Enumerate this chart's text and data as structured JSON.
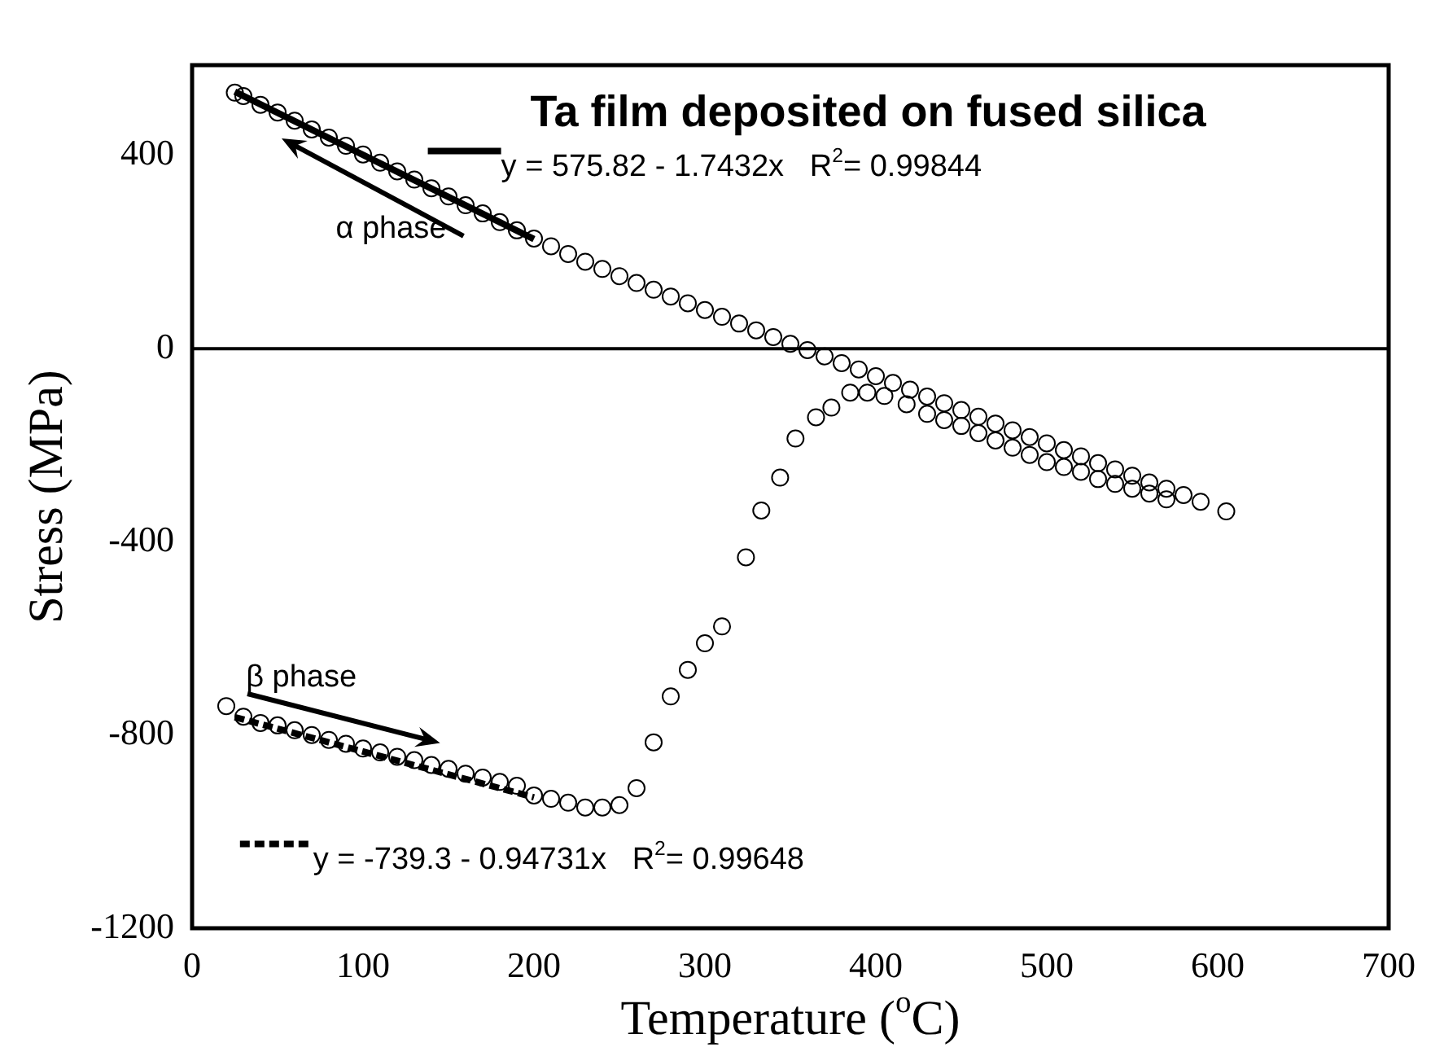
{
  "chart_data": {
    "type": "scatter",
    "title": "Ta film deposited on fused silica",
    "xlabel": "Temperature ($^{o}$C)",
    "ylabel": "Stress (MPa)",
    "xlim": [
      0,
      700
    ],
    "xticks": [
      0,
      100,
      200,
      300,
      400,
      500,
      600,
      700
    ],
    "ylim": [
      -1200,
      587
    ],
    "yticks": [
      -1200,
      -800,
      -400,
      0,
      400
    ],
    "grid": false,
    "legend": "left",
    "ref_lines": [
      {
        "axis": "y",
        "value": 0,
        "color": "#000000",
        "line_style": "solid"
      }
    ],
    "annotations": [
      "α phase",
      "β phase"
    ],
    "series": [
      {
        "type": "scatter",
        "marker": "circle",
        "color": "#000000",
        "x": [
          25,
          30,
          40,
          50,
          60,
          70,
          80,
          90,
          100,
          110,
          120,
          130,
          140,
          150,
          160,
          170,
          180,
          190,
          200,
          210,
          220,
          230,
          240,
          250,
          260,
          270,
          280,
          290,
          300,
          310,
          320,
          330,
          340,
          350,
          360,
          370,
          380,
          390,
          400,
          410,
          420,
          430,
          440,
          450,
          460,
          470,
          480,
          490,
          500,
          510,
          520,
          530,
          540,
          550,
          560,
          570,
          580,
          590,
          605
        ],
        "values": [
          530,
          523,
          505,
          489,
          472,
          454,
          437,
          420,
          402,
          385,
          367,
          350,
          332,
          315,
          297,
          280,
          262,
          245,
          228,
          212,
          196,
          180,
          165,
          150,
          136,
          122,
          108,
          94,
          80,
          66,
          52,
          38,
          24,
          10,
          -3,
          -16,
          -30,
          -43,
          -57,
          -71,
          -85,
          -99,
          -113,
          -127,
          -141,
          -155,
          -169,
          -183,
          -196,
          -210,
          -223,
          -237,
          -250,
          -263,
          -277,
          -290,
          -303,
          -317,
          -337
        ]
      },
      {
        "type": "scatter",
        "marker": "circle",
        "color": "#000000",
        "x": [
          20,
          30,
          40,
          50,
          60,
          70,
          80,
          90,
          100,
          110,
          120,
          130,
          140,
          150,
          160,
          170,
          180,
          190,
          200,
          210,
          220,
          230,
          240,
          250,
          260,
          270,
          280,
          290,
          300,
          310,
          324,
          333,
          344,
          353,
          365,
          374,
          385,
          395,
          405,
          418,
          430,
          440,
          450,
          460,
          470,
          480,
          490,
          500,
          510,
          520,
          530,
          540,
          550,
          560,
          570
        ],
        "values": [
          -740,
          -762,
          -775,
          -780,
          -790,
          -800,
          -810,
          -818,
          -828,
          -836,
          -845,
          -852,
          -862,
          -870,
          -880,
          -888,
          -897,
          -905,
          -925,
          -932,
          -940,
          -950,
          -950,
          -945,
          -910,
          -815,
          -720,
          -665,
          -610,
          -575,
          -432,
          -335,
          -267,
          -186,
          -142,
          -122,
          -91,
          -91,
          -98,
          -115,
          -135,
          -148,
          -160,
          -175,
          -190,
          -205,
          -220,
          -235,
          -245,
          -255,
          -270,
          -280,
          -290,
          -300,
          -312
        ]
      },
      {
        "type": "line",
        "name": "y = 575.82 - 1.7432x   R$^{2}$= 0.99844",
        "color": "#000000",
        "line_style": "solid",
        "marker": "none",
        "x": [
          25,
          200
        ],
        "values": [
          532,
          227
        ]
      },
      {
        "type": "line",
        "name": "y = -739.3 - 0.94731x   R$^{2}$= 0.99648",
        "color": "#000000",
        "line_style": "dashed",
        "marker": "none",
        "x": [
          25,
          200
        ],
        "values": [
          -763,
          -929
        ]
      }
    ]
  }
}
